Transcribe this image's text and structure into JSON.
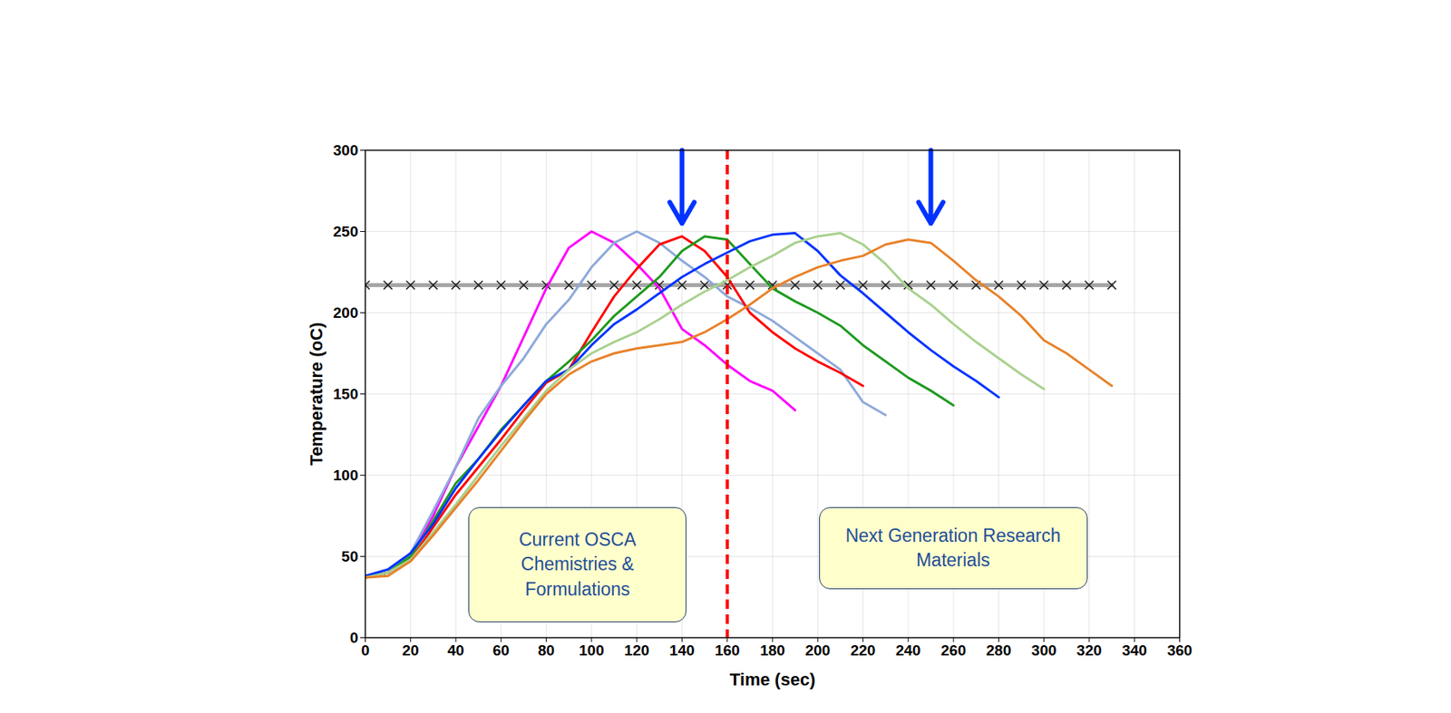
{
  "chart_data": {
    "type": "line",
    "x_label": "Time (sec)",
    "y_label": "Temperature (oC)",
    "xlim": [
      0,
      360
    ],
    "xticks": [
      0,
      20,
      40,
      60,
      80,
      100,
      120,
      140,
      160,
      180,
      200,
      220,
      240,
      260,
      280,
      300,
      320,
      340,
      360
    ],
    "ylim": [
      0,
      300
    ],
    "yticks": [
      0,
      50,
      100,
      150,
      200,
      250,
      300
    ],
    "grid": true,
    "series": [
      {
        "color": "#ff00ff",
        "x": [
          0,
          10,
          20,
          30,
          40,
          50,
          60,
          70,
          80,
          90,
          100,
          110,
          120,
          130,
          140,
          150,
          160,
          170,
          180,
          190
        ],
        "values": [
          37,
          40,
          50,
          75,
          105,
          130,
          155,
          185,
          215,
          240,
          250,
          243,
          230,
          215,
          190,
          180,
          168,
          158,
          152,
          140
        ]
      },
      {
        "color": "#8ea9db",
        "x": [
          0,
          10,
          20,
          30,
          40,
          50,
          60,
          70,
          80,
          90,
          100,
          110,
          120,
          130,
          140,
          150,
          160,
          170,
          180,
          190,
          200,
          210,
          220,
          230
        ],
        "values": [
          37,
          40,
          52,
          78,
          105,
          135,
          155,
          172,
          193,
          208,
          228,
          243,
          250,
          243,
          232,
          222,
          210,
          203,
          195,
          185,
          175,
          165,
          145,
          137
        ]
      },
      {
        "color": "#ff0000",
        "x": [
          0,
          10,
          20,
          30,
          40,
          50,
          60,
          70,
          80,
          90,
          100,
          110,
          120,
          130,
          140,
          150,
          160,
          170,
          180,
          190,
          200,
          210,
          220
        ],
        "values": [
          37,
          40,
          48,
          68,
          88,
          105,
          122,
          140,
          157,
          165,
          188,
          210,
          227,
          242,
          247,
          238,
          222,
          200,
          188,
          178,
          170,
          163,
          155
        ]
      },
      {
        "color": "#1e9a1e",
        "x": [
          0,
          10,
          20,
          30,
          40,
          50,
          60,
          70,
          80,
          90,
          100,
          110,
          120,
          130,
          140,
          150,
          160,
          170,
          180,
          190,
          200,
          210,
          220,
          230,
          240,
          250,
          260
        ],
        "values": [
          37,
          40,
          50,
          72,
          95,
          110,
          128,
          143,
          158,
          170,
          183,
          198,
          210,
          222,
          238,
          247,
          245,
          230,
          215,
          207,
          200,
          192,
          180,
          170,
          160,
          152,
          143
        ]
      },
      {
        "color": "#0033ff",
        "x": [
          0,
          10,
          20,
          30,
          40,
          50,
          60,
          70,
          80,
          90,
          100,
          110,
          120,
          130,
          140,
          150,
          160,
          170,
          180,
          190,
          200,
          210,
          220,
          230,
          240,
          250,
          260,
          270,
          280
        ],
        "values": [
          38,
          42,
          52,
          70,
          92,
          110,
          127,
          143,
          158,
          165,
          180,
          193,
          202,
          212,
          222,
          230,
          237,
          244,
          248,
          249,
          238,
          223,
          212,
          200,
          188,
          177,
          167,
          158,
          148
        ]
      },
      {
        "color": "#a9d18e",
        "x": [
          0,
          10,
          20,
          30,
          40,
          50,
          60,
          70,
          80,
          90,
          100,
          110,
          120,
          130,
          140,
          150,
          160,
          170,
          180,
          190,
          200,
          210,
          220,
          230,
          240,
          250,
          260,
          270,
          280,
          290,
          300
        ],
        "values": [
          37,
          40,
          48,
          65,
          82,
          100,
          118,
          135,
          152,
          165,
          175,
          182,
          188,
          196,
          205,
          213,
          220,
          228,
          235,
          243,
          247,
          249,
          242,
          230,
          215,
          205,
          193,
          182,
          172,
          162,
          153
        ]
      },
      {
        "color": "#e8822a",
        "x": [
          0,
          10,
          20,
          30,
          40,
          50,
          60,
          70,
          80,
          90,
          100,
          110,
          120,
          130,
          140,
          150,
          160,
          170,
          180,
          190,
          200,
          210,
          220,
          230,
          240,
          250,
          260,
          270,
          280,
          290,
          300,
          310,
          320,
          330
        ],
        "values": [
          37,
          38,
          47,
          63,
          80,
          97,
          115,
          133,
          150,
          162,
          170,
          175,
          178,
          180,
          182,
          188,
          196,
          205,
          215,
          222,
          228,
          232,
          235,
          242,
          245,
          243,
          232,
          220,
          210,
          198,
          183,
          175,
          165,
          155
        ]
      }
    ],
    "reference_line": {
      "y": 217,
      "color": "#a6a6a6",
      "marker": "x",
      "x": [
        0,
        10,
        20,
        30,
        40,
        50,
        60,
        70,
        80,
        90,
        100,
        110,
        120,
        130,
        140,
        150,
        160,
        170,
        180,
        190,
        200,
        210,
        220,
        230,
        240,
        250,
        260,
        270,
        280,
        290,
        300,
        310,
        320,
        330
      ]
    },
    "divider": {
      "x": 160,
      "color": "#ff0000",
      "line_style": "dashed"
    },
    "arrows": [
      {
        "x": 140,
        "y": 255,
        "color": "#0033ff"
      },
      {
        "x": 250,
        "y": 255,
        "color": "#0033ff"
      }
    ],
    "annotations": [
      {
        "text": "Current OSCA Chemistries & Formulations",
        "side": "left"
      },
      {
        "text": "Next Generation Research Materials",
        "side": "right"
      }
    ]
  }
}
